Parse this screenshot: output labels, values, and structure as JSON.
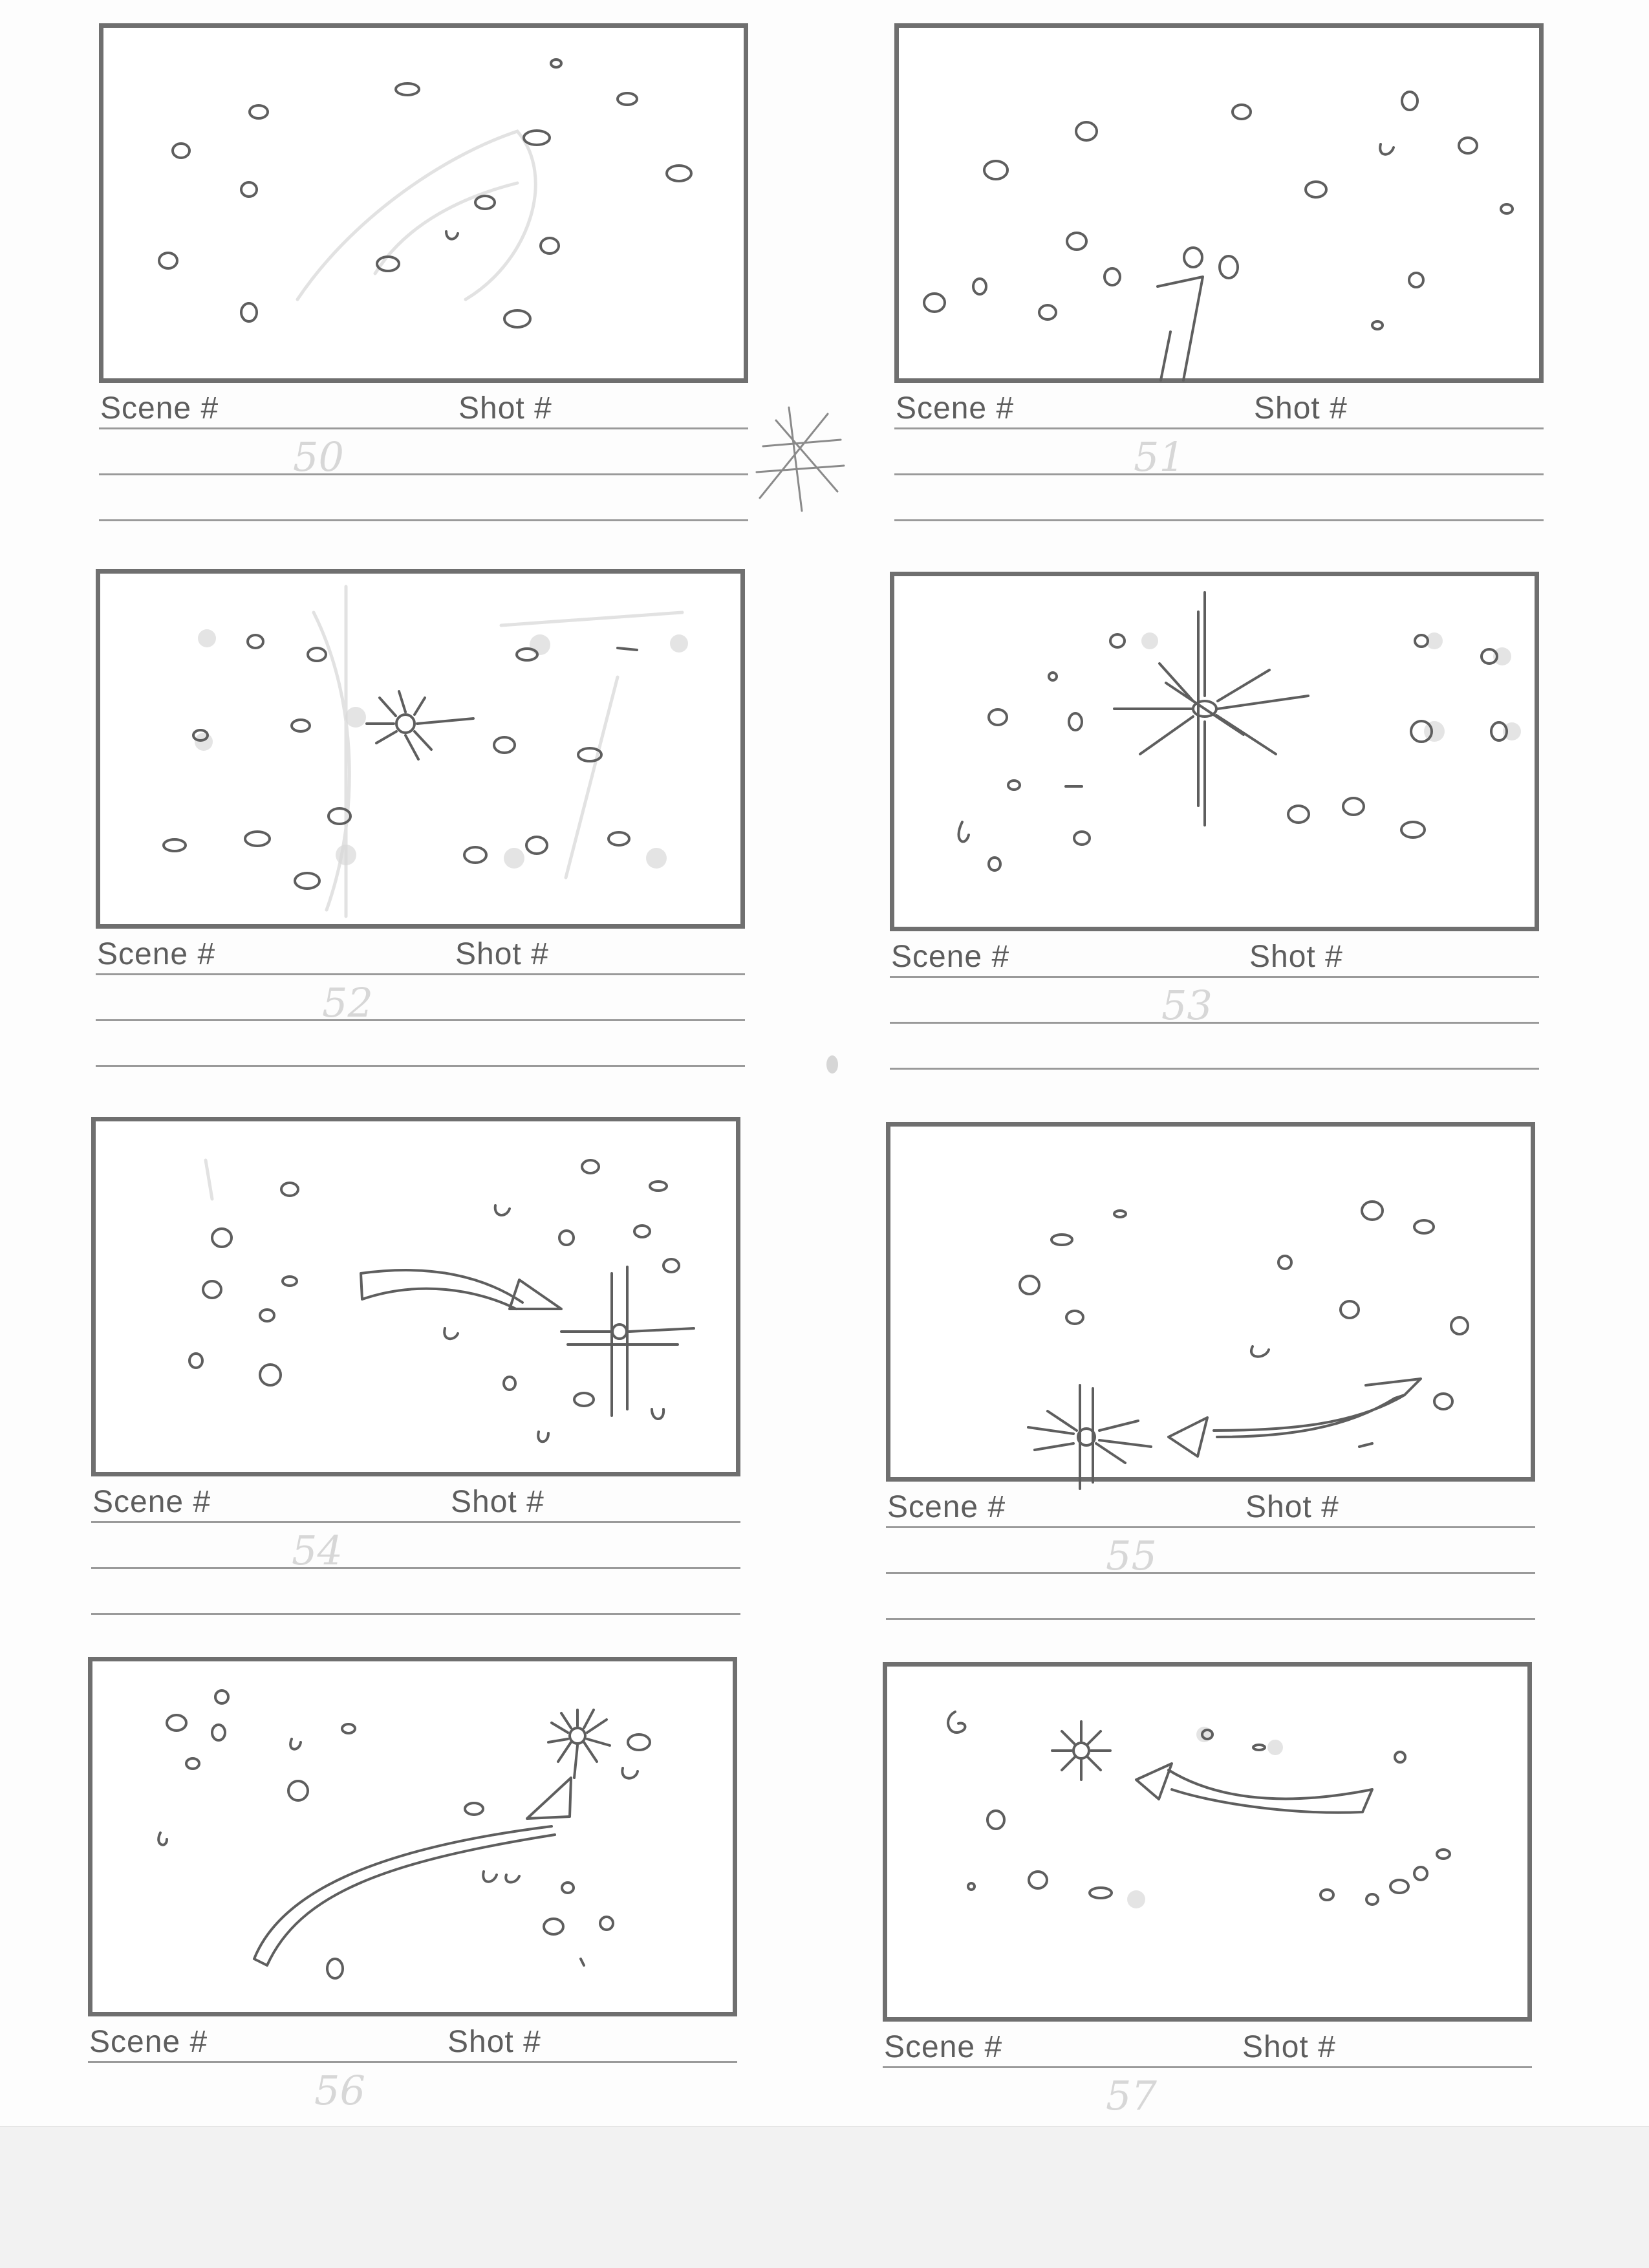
{
  "panels": [
    {
      "scene_label": "Scene #",
      "shot_label": "Shot #",
      "number": "50"
    },
    {
      "scene_label": "Scene #",
      "shot_label": "Shot #",
      "number": "51"
    },
    {
      "scene_label": "Scene #",
      "shot_label": "Shot #",
      "number": "52"
    },
    {
      "scene_label": "Scene #",
      "shot_label": "Shot #",
      "number": "53"
    },
    {
      "scene_label": "Scene #",
      "shot_label": "Shot #",
      "number": "54"
    },
    {
      "scene_label": "Scene #",
      "shot_label": "Shot #",
      "number": "55"
    },
    {
      "scene_label": "Scene #",
      "shot_label": "Shot #",
      "number": "56"
    },
    {
      "scene_label": "Scene #",
      "shot_label": "Shot #",
      "number": "57"
    }
  ],
  "colors": {
    "frame": "#6f6f6f",
    "label_text": "#5d5d5d",
    "pencil_number": "#d7d7d7",
    "sheet": "#fdfdfd"
  }
}
